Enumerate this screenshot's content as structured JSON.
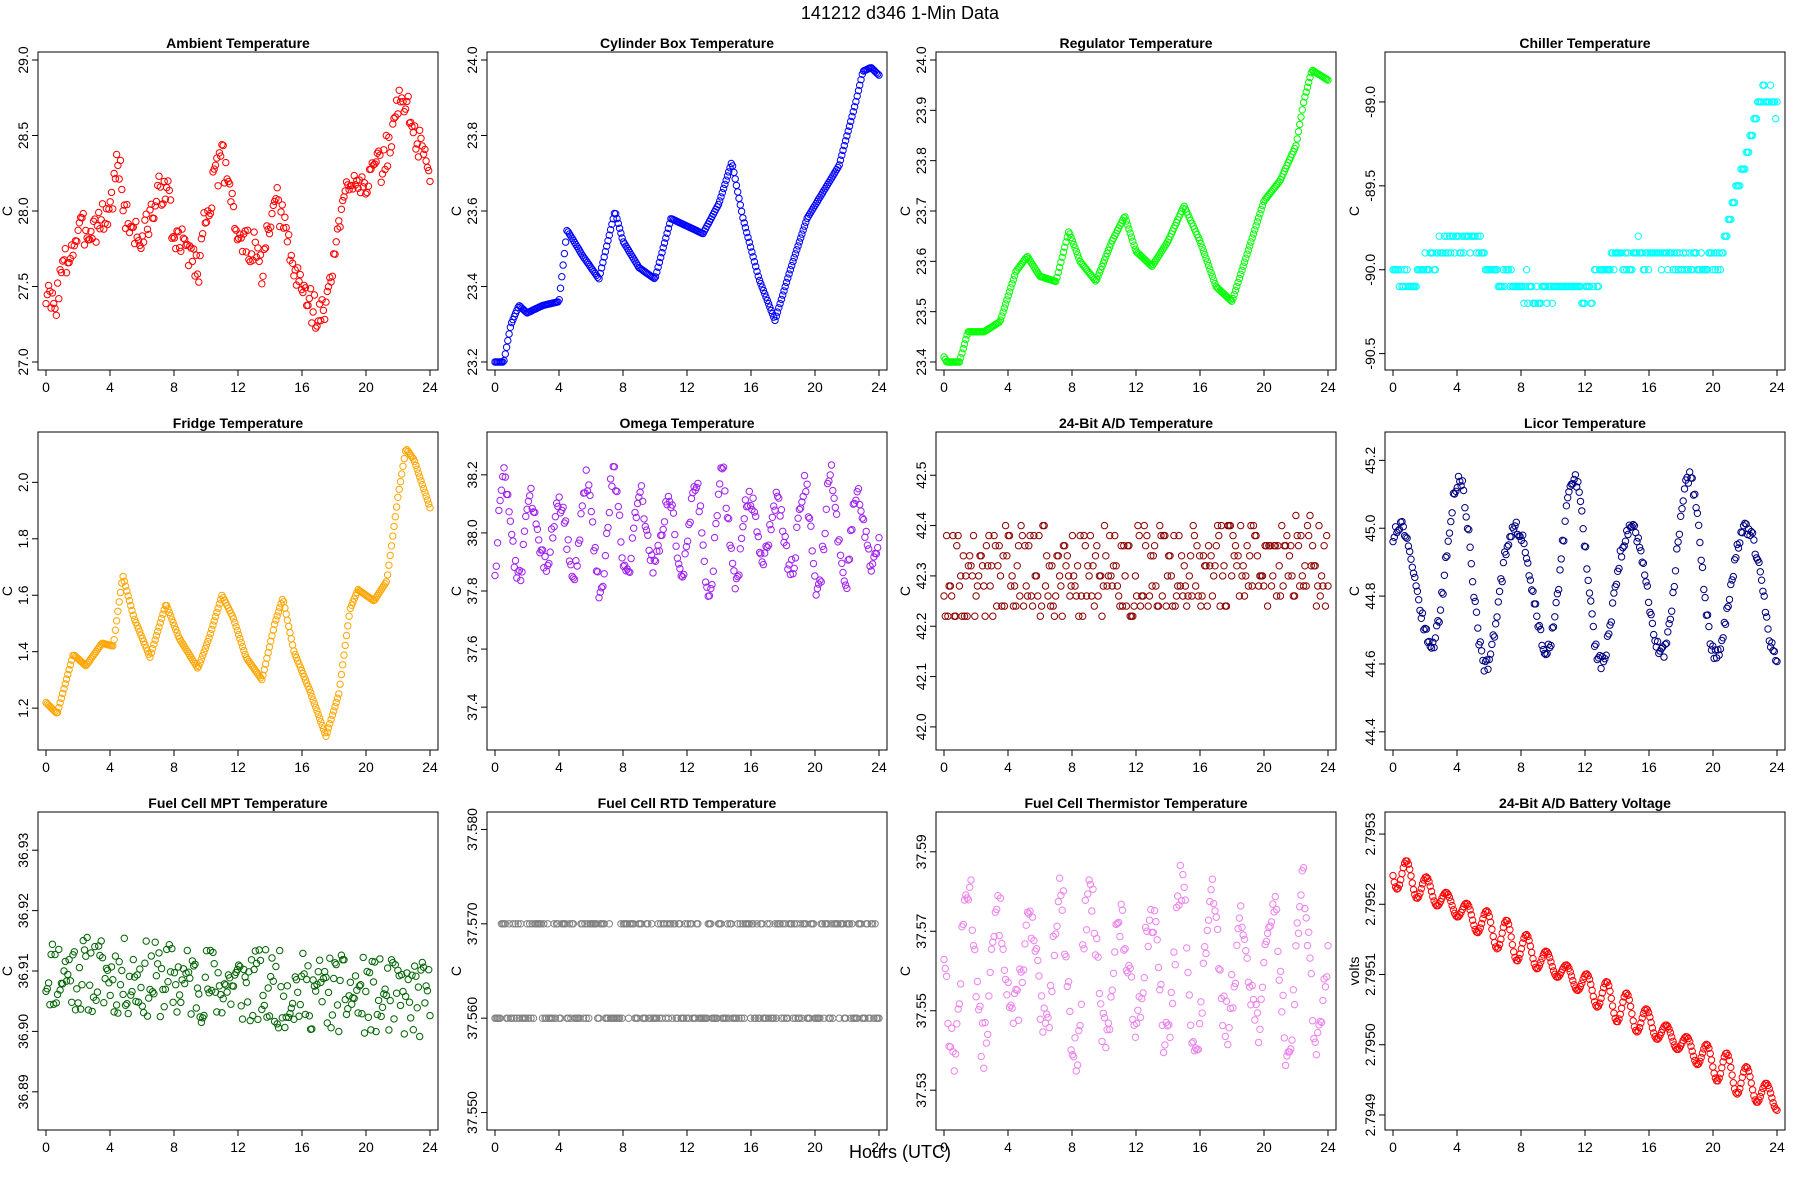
{
  "figure": {
    "title": "141212   d346   1-Min Data",
    "xlabel": "Hours (UTC)"
  },
  "chart_data": [
    {
      "type": "scatter",
      "title": "Ambient Temperature",
      "ylabel": "C",
      "color": "#ff0000",
      "xlim": [
        0,
        24
      ],
      "ylim": [
        27.0,
        29.0
      ],
      "xticks": [
        "0",
        "4",
        "8",
        "12",
        "16",
        "20",
        "24"
      ],
      "yticks": [
        "27.0",
        "27.5",
        "28.0",
        "28.5",
        "29.0"
      ],
      "pattern": {
        "mode": "noisy",
        "noise": 0.12,
        "points": 300,
        "anchors": [
          [
            0,
            27.45
          ],
          [
            0.5,
            27.35
          ],
          [
            1,
            27.6
          ],
          [
            2,
            27.85
          ],
          [
            3,
            27.9
          ],
          [
            4,
            28.0
          ],
          [
            4.5,
            28.35
          ],
          [
            5,
            27.95
          ],
          [
            6,
            27.8
          ],
          [
            7,
            28.1
          ],
          [
            7.5,
            28.2
          ],
          [
            8,
            27.8
          ],
          [
            9,
            27.75
          ],
          [
            9.5,
            27.6
          ],
          [
            10,
            28.0
          ],
          [
            11,
            28.35
          ],
          [
            11.5,
            28.2
          ],
          [
            12,
            27.8
          ],
          [
            13,
            27.75
          ],
          [
            13.5,
            27.6
          ],
          [
            14,
            27.9
          ],
          [
            14.5,
            28.05
          ],
          [
            15,
            27.85
          ],
          [
            15.5,
            27.6
          ],
          [
            16,
            27.5
          ],
          [
            17,
            27.3
          ],
          [
            17.5,
            27.35
          ],
          [
            18,
            27.7
          ],
          [
            19,
            28.25
          ],
          [
            20,
            28.2
          ],
          [
            21,
            28.3
          ],
          [
            21.5,
            28.45
          ],
          [
            22,
            28.7
          ],
          [
            22.5,
            28.75
          ],
          [
            23,
            28.5
          ],
          [
            24,
            28.3
          ]
        ]
      }
    },
    {
      "type": "scatter",
      "title": "Cylinder Box Temperature",
      "ylabel": "C",
      "color": "#0000ff",
      "xlim": [
        0,
        24
      ],
      "ylim": [
        23.2,
        24.0
      ],
      "xticks": [
        "0",
        "4",
        "8",
        "12",
        "16",
        "20",
        "24"
      ],
      "yticks": [
        "23.2",
        "23.4",
        "23.6",
        "23.8",
        "24.0"
      ],
      "pattern": {
        "mode": "smooth",
        "noise": 0,
        "points": 300,
        "anchors": [
          [
            0,
            23.2
          ],
          [
            0.5,
            23.19
          ],
          [
            1,
            23.3
          ],
          [
            1.5,
            23.35
          ],
          [
            2,
            23.33
          ],
          [
            3,
            23.35
          ],
          [
            4,
            23.36
          ],
          [
            4.5,
            23.55
          ],
          [
            5.5,
            23.48
          ],
          [
            6.5,
            23.42
          ],
          [
            7.5,
            23.6
          ],
          [
            8,
            23.52
          ],
          [
            9,
            23.45
          ],
          [
            10,
            23.42
          ],
          [
            11,
            23.58
          ],
          [
            12,
            23.56
          ],
          [
            13,
            23.54
          ],
          [
            14,
            23.62
          ],
          [
            14.8,
            23.73
          ],
          [
            15.5,
            23.58
          ],
          [
            16.5,
            23.42
          ],
          [
            17.5,
            23.31
          ],
          [
            18.5,
            23.45
          ],
          [
            19.5,
            23.58
          ],
          [
            20.5,
            23.65
          ],
          [
            21.5,
            23.72
          ],
          [
            22.5,
            23.88
          ],
          [
            23,
            23.97
          ],
          [
            23.5,
            23.98
          ],
          [
            24,
            23.96
          ]
        ]
      }
    },
    {
      "type": "scatter",
      "title": "Regulator Temperature",
      "ylabel": "C",
      "color": "#00ff00",
      "xlim": [
        0,
        24
      ],
      "ylim": [
        23.4,
        24.0
      ],
      "xticks": [
        "0",
        "4",
        "8",
        "12",
        "16",
        "20",
        "24"
      ],
      "yticks": [
        "23.4",
        "23.5",
        "23.6",
        "23.7",
        "23.8",
        "23.9",
        "24.0"
      ],
      "pattern": {
        "mode": "smooth",
        "noise": 0,
        "points": 300,
        "anchors": [
          [
            0,
            23.41
          ],
          [
            0.7,
            23.37
          ],
          [
            1.5,
            23.46
          ],
          [
            2.5,
            23.46
          ],
          [
            3.5,
            23.48
          ],
          [
            4.5,
            23.58
          ],
          [
            5.2,
            23.61
          ],
          [
            6,
            23.57
          ],
          [
            7,
            23.56
          ],
          [
            7.8,
            23.66
          ],
          [
            8.5,
            23.6
          ],
          [
            9.5,
            23.56
          ],
          [
            10.5,
            23.64
          ],
          [
            11.3,
            23.69
          ],
          [
            12,
            23.62
          ],
          [
            13,
            23.59
          ],
          [
            14,
            23.64
          ],
          [
            15,
            23.71
          ],
          [
            16,
            23.64
          ],
          [
            17,
            23.55
          ],
          [
            18,
            23.52
          ],
          [
            19,
            23.62
          ],
          [
            20,
            23.72
          ],
          [
            21,
            23.76
          ],
          [
            22,
            23.83
          ],
          [
            22.5,
            23.92
          ],
          [
            23,
            23.98
          ],
          [
            24,
            23.96
          ]
        ]
      }
    },
    {
      "type": "scatter",
      "title": "Chiller Temperature",
      "ylabel": "C",
      "color": "#00ffff",
      "xlim": [
        0,
        24
      ],
      "ylim": [
        -90.55,
        -88.75
      ],
      "xticks": [
        "0",
        "4",
        "8",
        "12",
        "16",
        "20",
        "24"
      ],
      "yticks": [
        "-90.5",
        "-90.0",
        "-89.5",
        "-89.0"
      ],
      "pattern": {
        "mode": "step",
        "step": 0.1,
        "noise": 0.06,
        "points": 300,
        "anchors": [
          [
            0,
            -90.0
          ],
          [
            1,
            -90.1
          ],
          [
            2,
            -90.0
          ],
          [
            3,
            -89.85
          ],
          [
            5,
            -89.8
          ],
          [
            6,
            -90.0
          ],
          [
            8,
            -90.1
          ],
          [
            10,
            -90.15
          ],
          [
            11,
            -90.05
          ],
          [
            12,
            -90.2
          ],
          [
            13,
            -90.0
          ],
          [
            15,
            -89.9
          ],
          [
            17,
            -89.9
          ],
          [
            19,
            -90.0
          ],
          [
            20.5,
            -89.95
          ],
          [
            21,
            -89.7
          ],
          [
            22,
            -89.4
          ],
          [
            22.5,
            -89.1
          ],
          [
            23,
            -88.95
          ],
          [
            24,
            -89.0
          ]
        ]
      }
    },
    {
      "type": "scatter",
      "title": "Fridge Temperature",
      "ylabel": "C",
      "color": "#ffa500",
      "xlim": [
        0,
        24
      ],
      "ylim": [
        1.08,
        2.15
      ],
      "xticks": [
        "0",
        "4",
        "8",
        "12",
        "16",
        "20",
        "24"
      ],
      "yticks": [
        "1.2",
        "1.4",
        "1.6",
        "1.8",
        "2.0"
      ],
      "pattern": {
        "mode": "smooth",
        "noise": 0,
        "points": 300,
        "anchors": [
          [
            0,
            1.22
          ],
          [
            0.7,
            1.18
          ],
          [
            1.7,
            1.39
          ],
          [
            2.5,
            1.35
          ],
          [
            3.5,
            1.43
          ],
          [
            4.2,
            1.42
          ],
          [
            4.8,
            1.67
          ],
          [
            5.5,
            1.52
          ],
          [
            6.5,
            1.38
          ],
          [
            7.5,
            1.57
          ],
          [
            8.3,
            1.45
          ],
          [
            9.5,
            1.34
          ],
          [
            10.2,
            1.45
          ],
          [
            11,
            1.6
          ],
          [
            11.7,
            1.52
          ],
          [
            12.5,
            1.38
          ],
          [
            13.5,
            1.3
          ],
          [
            14.3,
            1.5
          ],
          [
            14.8,
            1.59
          ],
          [
            15.5,
            1.4
          ],
          [
            16.5,
            1.26
          ],
          [
            17.5,
            1.1
          ],
          [
            18.3,
            1.25
          ],
          [
            19,
            1.55
          ],
          [
            19.5,
            1.62
          ],
          [
            20.5,
            1.58
          ],
          [
            21.3,
            1.65
          ],
          [
            22,
            1.95
          ],
          [
            22.5,
            2.12
          ],
          [
            23,
            2.08
          ],
          [
            24,
            1.91
          ]
        ]
      }
    },
    {
      "type": "scatter",
      "title": "Omega Temperature",
      "ylabel": "C",
      "color": "#a020f0",
      "xlim": [
        0,
        24
      ],
      "ylim": [
        37.28,
        38.32
      ],
      "xticks": [
        "0",
        "4",
        "8",
        "12",
        "16",
        "20",
        "24"
      ],
      "yticks": [
        "37.4",
        "37.6",
        "37.8",
        "38.0",
        "38.2"
      ],
      "pattern": {
        "mode": "oscillate",
        "amp": 0.2,
        "period": 1.7,
        "noise": 0.04,
        "points": 300,
        "anchors": [
          [
            0,
            38.0
          ],
          [
            24,
            38.0
          ]
        ]
      }
    },
    {
      "type": "scatter",
      "title": "24-Bit A/D Temperature",
      "ylabel": "C",
      "color": "#8b0000",
      "xlim": [
        0,
        24
      ],
      "ylim": [
        41.97,
        42.57
      ],
      "xticks": [
        "0",
        "4",
        "8",
        "12",
        "16",
        "20",
        "24"
      ],
      "yticks": [
        "42.0",
        "42.1",
        "42.2",
        "42.3",
        "42.4",
        "42.5"
      ],
      "pattern": {
        "mode": "noisy",
        "step": 0.02,
        "noise": 0.09,
        "points": 300,
        "anchors": [
          [
            0,
            42.3
          ],
          [
            24,
            42.33
          ]
        ]
      }
    },
    {
      "type": "scatter",
      "title": "Licor Temperature",
      "ylabel": "C",
      "color": "#000080",
      "xlim": [
        0,
        24
      ],
      "ylim": [
        44.37,
        45.26
      ],
      "xticks": [
        "0",
        "4",
        "8",
        "12",
        "16",
        "20",
        "24"
      ],
      "yticks": [
        "44.4",
        "44.6",
        "44.8",
        "45.0",
        "45.2"
      ],
      "pattern": {
        "mode": "oscillate",
        "amp": 0.3,
        "period": 3.6,
        "noise": 0.02,
        "points": 300,
        "anchors": [
          [
            0,
            44.85
          ],
          [
            24,
            44.85
          ]
        ]
      }
    },
    {
      "type": "scatter",
      "title": "Fuel Cell MPT Temperature",
      "ylabel": "C",
      "color": "#006400",
      "xlim": [
        0,
        24
      ],
      "ylim": [
        36.885,
        36.935
      ],
      "xticks": [
        "0",
        "4",
        "8",
        "12",
        "16",
        "20",
        "24"
      ],
      "yticks": [
        "36.89",
        "36.90",
        "36.91",
        "36.92",
        "36.93"
      ],
      "pattern": {
        "mode": "noisy",
        "noise": 0.0065,
        "points": 300,
        "anchors": [
          [
            0,
            36.91
          ],
          [
            24,
            36.905
          ]
        ]
      }
    },
    {
      "type": "scatter",
      "title": "Fuel Cell RTD Temperature",
      "ylabel": "C",
      "color": "#808080",
      "xlim": [
        0,
        24
      ],
      "ylim": [
        37.549,
        37.581
      ],
      "xticks": [
        "0",
        "4",
        "8",
        "12",
        "16",
        "20",
        "24"
      ],
      "yticks": [
        "37.550",
        "37.560",
        "37.570",
        "37.580"
      ],
      "pattern": {
        "mode": "step",
        "step": 0.01,
        "noise": 0.006,
        "points": 300,
        "anchors": [
          [
            0,
            37.565
          ],
          [
            24,
            37.565
          ]
        ]
      }
    },
    {
      "type": "scatter",
      "title": "Fuel Cell Thermistor Temperature",
      "ylabel": "C",
      "color": "#ee82ee",
      "xlim": [
        0,
        24
      ],
      "ylim": [
        37.522,
        37.598
      ],
      "xticks": [
        "0",
        "4",
        "8",
        "12",
        "16",
        "20",
        "24"
      ],
      "yticks": [
        "37.53",
        "37.55",
        "37.57",
        "37.59"
      ],
      "pattern": {
        "mode": "oscillate",
        "amp": 0.022,
        "period": 1.9,
        "noise": 0.006,
        "points": 300,
        "anchors": [
          [
            0,
            37.56
          ],
          [
            24,
            37.56
          ]
        ]
      }
    },
    {
      "type": "scatter",
      "title": "24-Bit A/D Battery Voltage",
      "ylabel": "volts",
      "color": "#ff0000",
      "xlim": [
        0,
        24
      ],
      "ylim": [
        2.79489,
        2.79532
      ],
      "xticks": [
        "0",
        "4",
        "8",
        "12",
        "16",
        "20",
        "24"
      ],
      "yticks": [
        "2.7949",
        "2.7950",
        "2.7951",
        "2.7952",
        "2.7953"
      ],
      "pattern": {
        "mode": "oscillate",
        "amp": 2.5e-05,
        "period": 1.25,
        "noise": 0,
        "points": 300,
        "anchors": [
          [
            0,
            2.79525
          ],
          [
            24,
            2.79492
          ]
        ]
      }
    }
  ]
}
